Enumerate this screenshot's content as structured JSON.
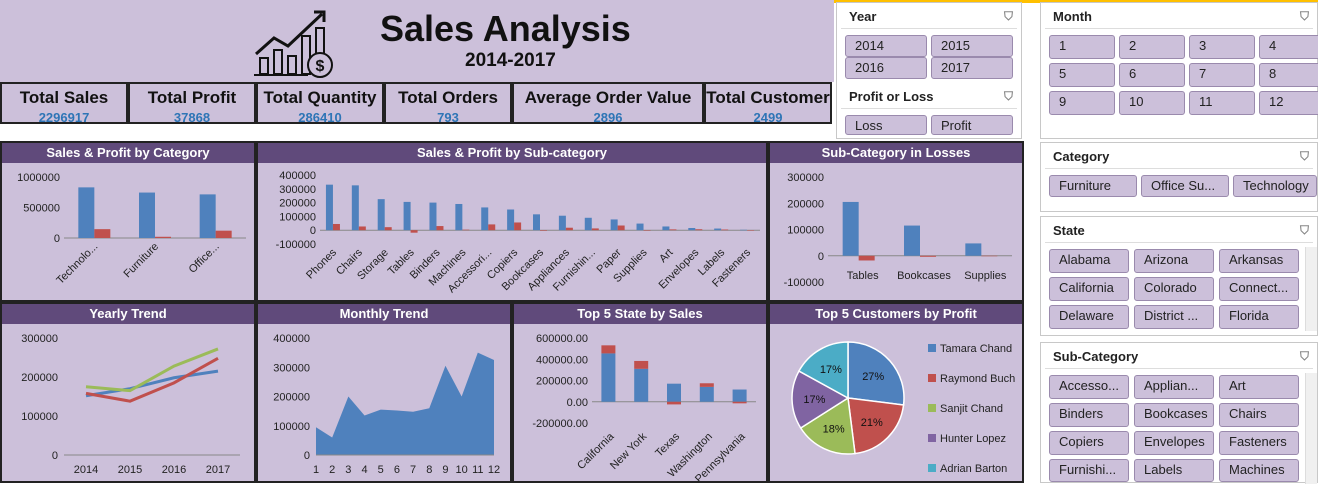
{
  "header": {
    "title": "Sales Analysis",
    "subtitle": "2014-2017"
  },
  "kpis": [
    {
      "label": "Total Sales",
      "value": "2296917"
    },
    {
      "label": "Total Profit",
      "value": "37868"
    },
    {
      "label": "Total Quantity",
      "value": "286410"
    },
    {
      "label": "Total Orders",
      "value": "793"
    },
    {
      "label": "Average Order Value",
      "value": "2896"
    },
    {
      "label": "Total Customer",
      "value": "2499"
    }
  ],
  "colors": {
    "sales": "#4f81bd",
    "profit": "#c0504d",
    "green": "#9bbb59",
    "purple": "#8064a2",
    "teal": "#4bacc6",
    "panel_bg": "#ccc0da",
    "title_bg": "#604a7b"
  },
  "slicers": {
    "year": {
      "title": "Year",
      "items": [
        "2014",
        "2015",
        "2016",
        "2017"
      ]
    },
    "profit_loss": {
      "title": "Profit or Loss",
      "items": [
        "Loss",
        "Profit"
      ]
    },
    "month": {
      "title": "Month",
      "items": [
        "1",
        "2",
        "3",
        "4",
        "5",
        "6",
        "7",
        "8",
        "9",
        "10",
        "11",
        "12"
      ]
    },
    "category": {
      "title": "Category",
      "items": [
        "Furniture",
        "Office Su...",
        "Technology"
      ]
    },
    "state": {
      "title": "State",
      "items": [
        "Alabama",
        "Arizona",
        "Arkansas",
        "California",
        "Colorado",
        "Connect...",
        "Delaware",
        "District ...",
        "Florida"
      ]
    },
    "subcategory": {
      "title": "Sub-Category",
      "items": [
        "Accesso...",
        "Applian...",
        "Art",
        "Binders",
        "Bookcases",
        "Chairs",
        "Copiers",
        "Envelopes",
        "Fasteners",
        "Furnishi...",
        "Labels",
        "Machines"
      ]
    }
  },
  "chart_data": [
    {
      "type": "bar",
      "title": "Sales & Profit by Category",
      "categories": [
        "Technolo...",
        "Furniture",
        "Office..."
      ],
      "series": [
        {
          "values": [
            830000,
            745000,
            715000
          ]
        },
        {
          "values": [
            145000,
            20000,
            120000
          ]
        }
      ],
      "ylim": [
        0,
        1000000
      ],
      "yticks": [
        "1000000",
        "500000",
        "0"
      ]
    },
    {
      "type": "bar",
      "title": "Sales & Profit by Sub-category",
      "categories": [
        "Phones",
        "Chairs",
        "Storage",
        "Tables",
        "Binders",
        "Machines",
        "Accessori...",
        "Copiers",
        "Bookcases",
        "Appliances",
        "Furnishin...",
        "Paper",
        "Supplies",
        "Art",
        "Envelopes",
        "Labels",
        "Fasteners"
      ],
      "series": [
        {
          "values": [
            330000,
            325000,
            225000,
            205000,
            200000,
            190000,
            165000,
            150000,
            115000,
            105000,
            90000,
            78000,
            48000,
            27000,
            16000,
            12000,
            3000
          ]
        },
        {
          "values": [
            45000,
            27000,
            22000,
            -18000,
            30000,
            4000,
            42000,
            56000,
            -4000,
            18000,
            13000,
            34000,
            -1000,
            6000,
            7000,
            5000,
            1000
          ]
        }
      ],
      "ylim": [
        -100000,
        400000
      ],
      "yticks": [
        "400000",
        "300000",
        "200000",
        "100000",
        "0",
        "-100000"
      ]
    },
    {
      "type": "bar",
      "title": "Sub-Category in Losses",
      "categories": [
        "Tables",
        "Bookcases",
        "Supplies"
      ],
      "series": [
        {
          "values": [
            205000,
            115000,
            47000
          ]
        },
        {
          "values": [
            -18000,
            -4000,
            -1000
          ]
        }
      ],
      "ylim": [
        -100000,
        300000
      ],
      "yticks": [
        "300000",
        "200000",
        "100000",
        "0",
        "-100000"
      ]
    },
    {
      "type": "line",
      "title": "Yearly Trend",
      "categories": [
        "2014",
        "2015",
        "2016",
        "2017"
      ],
      "series": [
        {
          "values": [
            152000,
            170000,
            198000,
            215000
          ]
        },
        {
          "values": [
            158000,
            138000,
            185000,
            248000
          ]
        },
        {
          "values": [
            175000,
            165000,
            228000,
            272000
          ]
        }
      ],
      "ylim": [
        0,
        300000
      ],
      "yticks": [
        "300000",
        "200000",
        "100000",
        "0"
      ]
    },
    {
      "type": "area",
      "title": "Monthly Trend",
      "categories": [
        "1",
        "2",
        "3",
        "4",
        "5",
        "6",
        "7",
        "8",
        "9",
        "10",
        "11",
        "12"
      ],
      "values": [
        95000,
        60000,
        200000,
        135000,
        155000,
        152000,
        148000,
        160000,
        305000,
        200000,
        350000,
        325000
      ],
      "ylim": [
        0,
        400000
      ],
      "yticks": [
        "400000",
        "300000",
        "200000",
        "100000",
        "0"
      ]
    },
    {
      "type": "bar",
      "title": "Top 5 State by Sales",
      "categories": [
        "California",
        "New York",
        "Texas",
        "Washington",
        "Pennsylvania"
      ],
      "series": [
        {
          "values": [
            455000,
            310000,
            170000,
            140000,
            115000
          ]
        },
        {
          "values": [
            76000,
            74000,
            -25000,
            34000,
            -15000
          ]
        }
      ],
      "ylim": [
        -200000,
        600000
      ],
      "yticks": [
        "600000.00",
        "400000.00",
        "200000.00",
        "0.00",
        "-200000.00"
      ]
    },
    {
      "type": "pie",
      "title": "Top 5 Customers by Profit",
      "categories": [
        "Tamara Chand",
        "Raymond Buch",
        "Sanjit Chand",
        "Hunter Lopez",
        "Adrian Barton"
      ],
      "values": [
        27,
        21,
        18,
        17,
        17
      ],
      "labels": [
        "27%",
        "21%",
        "18%",
        "17%",
        "17%"
      ]
    }
  ]
}
